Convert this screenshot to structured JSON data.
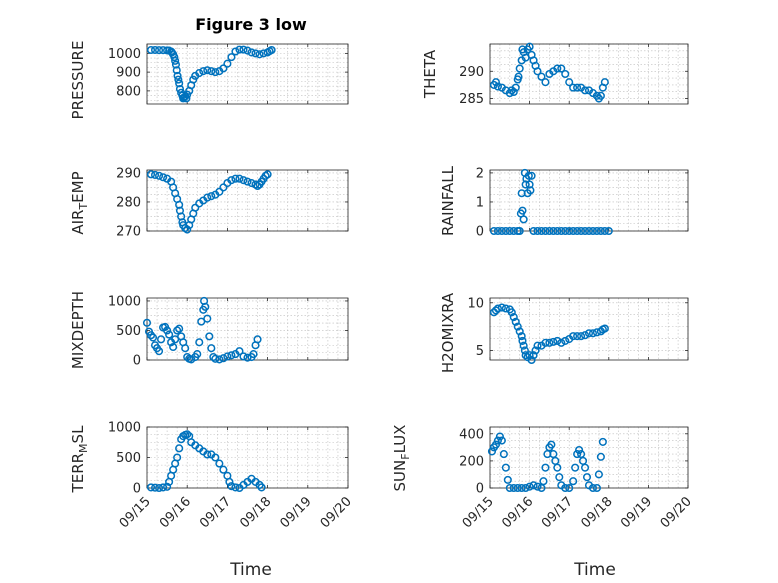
{
  "figure": {
    "title": "Figure 3 low",
    "marker_color": "#0072bd",
    "grid": true,
    "x_tick_labels": [
      "09/15",
      "09/16",
      "09/17",
      "09/18",
      "09/19",
      "09/20"
    ],
    "x_label": "Time"
  },
  "chart_data": [
    {
      "type": "scatter",
      "ylabel": "PRESSURE",
      "ylim": [
        730,
        1050
      ],
      "yticks": [
        800,
        900,
        1000
      ],
      "points": [
        [
          0.1,
          1018
        ],
        [
          0.2,
          1018
        ],
        [
          0.3,
          1017
        ],
        [
          0.4,
          1017
        ],
        [
          0.5,
          1016
        ],
        [
          0.55,
          1015
        ],
        [
          0.6,
          1010
        ],
        [
          0.62,
          1005
        ],
        [
          0.65,
          995
        ],
        [
          0.68,
          980
        ],
        [
          0.7,
          960
        ],
        [
          0.72,
          940
        ],
        [
          0.74,
          910
        ],
        [
          0.76,
          880
        ],
        [
          0.78,
          860
        ],
        [
          0.8,
          840
        ],
        [
          0.82,
          810
        ],
        [
          0.85,
          790
        ],
        [
          0.88,
          775
        ],
        [
          0.9,
          760
        ],
        [
          0.92,
          765
        ],
        [
          0.95,
          770
        ],
        [
          0.98,
          760
        ],
        [
          1.0,
          780
        ],
        [
          1.05,
          800
        ],
        [
          1.1,
          830
        ],
        [
          1.15,
          860
        ],
        [
          1.2,
          880
        ],
        [
          1.3,
          895
        ],
        [
          1.4,
          905
        ],
        [
          1.5,
          910
        ],
        [
          1.6,
          905
        ],
        [
          1.7,
          900
        ],
        [
          1.8,
          905
        ],
        [
          1.9,
          920
        ],
        [
          2.0,
          945
        ],
        [
          2.1,
          980
        ],
        [
          2.2,
          1010
        ],
        [
          2.3,
          1020
        ],
        [
          2.4,
          1020
        ],
        [
          2.5,
          1015
        ],
        [
          2.6,
          1005
        ],
        [
          2.7,
          1000
        ],
        [
          2.8,
          995
        ],
        [
          2.9,
          1000
        ],
        [
          3.0,
          1005
        ],
        [
          3.05,
          1012
        ],
        [
          3.1,
          1018
        ]
      ]
    },
    {
      "type": "scatter",
      "ylabel": "THETA",
      "ylim": [
        284,
        295
      ],
      "yticks": [
        285,
        290
      ],
      "points": [
        [
          0.1,
          287.5
        ],
        [
          0.15,
          288
        ],
        [
          0.2,
          287.2
        ],
        [
          0.3,
          287
        ],
        [
          0.4,
          286.5
        ],
        [
          0.5,
          286
        ],
        [
          0.55,
          286.5
        ],
        [
          0.6,
          286.2
        ],
        [
          0.65,
          287
        ],
        [
          0.7,
          288.5
        ],
        [
          0.72,
          289
        ],
        [
          0.75,
          290.5
        ],
        [
          0.8,
          292
        ],
        [
          0.82,
          294
        ],
        [
          0.85,
          293.5
        ],
        [
          0.9,
          292.5
        ],
        [
          0.95,
          294
        ],
        [
          1.0,
          294.5
        ],
        [
          1.05,
          293
        ],
        [
          1.1,
          292
        ],
        [
          1.15,
          291
        ],
        [
          1.2,
          290
        ],
        [
          1.3,
          289
        ],
        [
          1.4,
          288
        ],
        [
          1.5,
          289.5
        ],
        [
          1.6,
          290
        ],
        [
          1.7,
          290.5
        ],
        [
          1.8,
          290.5
        ],
        [
          1.9,
          289.5
        ],
        [
          2.0,
          288
        ],
        [
          2.1,
          287
        ],
        [
          2.2,
          287
        ],
        [
          2.3,
          287
        ],
        [
          2.4,
          286.5
        ],
        [
          2.5,
          286.5
        ],
        [
          2.6,
          286
        ],
        [
          2.7,
          285.5
        ],
        [
          2.75,
          285
        ],
        [
          2.8,
          285.5
        ],
        [
          2.85,
          287
        ],
        [
          2.9,
          288
        ]
      ]
    },
    {
      "type": "scatter",
      "ylabel": "AIR_TEMP",
      "ylim": [
        270,
        291
      ],
      "yticks": [
        270,
        280,
        290
      ],
      "points": [
        [
          0.1,
          289.5
        ],
        [
          0.2,
          289.3
        ],
        [
          0.3,
          289
        ],
        [
          0.4,
          288.5
        ],
        [
          0.5,
          288
        ],
        [
          0.6,
          287
        ],
        [
          0.65,
          285
        ],
        [
          0.7,
          283
        ],
        [
          0.75,
          281
        ],
        [
          0.8,
          279
        ],
        [
          0.82,
          277
        ],
        [
          0.85,
          275
        ],
        [
          0.88,
          273
        ],
        [
          0.9,
          272
        ],
        [
          0.95,
          271
        ],
        [
          1.0,
          270.5
        ],
        [
          1.05,
          272
        ],
        [
          1.1,
          274
        ],
        [
          1.15,
          276
        ],
        [
          1.2,
          278
        ],
        [
          1.3,
          279.5
        ],
        [
          1.4,
          280.5
        ],
        [
          1.5,
          281.5
        ],
        [
          1.6,
          282
        ],
        [
          1.7,
          282.5
        ],
        [
          1.8,
          283.5
        ],
        [
          1.9,
          285
        ],
        [
          2.0,
          286.5
        ],
        [
          2.1,
          287.5
        ],
        [
          2.2,
          288
        ],
        [
          2.3,
          288
        ],
        [
          2.4,
          287.5
        ],
        [
          2.5,
          287
        ],
        [
          2.6,
          286.5
        ],
        [
          2.7,
          286
        ],
        [
          2.75,
          285.5
        ],
        [
          2.8,
          286
        ],
        [
          2.85,
          287
        ],
        [
          2.9,
          288
        ],
        [
          2.95,
          289
        ],
        [
          3.0,
          289.5
        ]
      ]
    },
    {
      "type": "scatter",
      "ylabel": "RAINFALL",
      "ylim": [
        0,
        2.1
      ],
      "yticks": [
        0,
        1,
        2
      ],
      "points": [
        [
          0.1,
          0
        ],
        [
          0.2,
          0
        ],
        [
          0.3,
          0
        ],
        [
          0.4,
          0
        ],
        [
          0.5,
          0
        ],
        [
          0.6,
          0
        ],
        [
          0.7,
          0
        ],
        [
          0.75,
          0
        ],
        [
          0.78,
          0.6
        ],
        [
          0.8,
          1.3
        ],
        [
          0.82,
          0.7
        ],
        [
          0.85,
          0.4
        ],
        [
          0.88,
          2.0
        ],
        [
          0.9,
          1.6
        ],
        [
          0.92,
          1.8
        ],
        [
          0.95,
          1.3
        ],
        [
          0.98,
          1.9
        ],
        [
          1.0,
          1.6
        ],
        [
          1.02,
          1.4
        ],
        [
          1.05,
          1.9
        ],
        [
          1.1,
          0
        ],
        [
          1.2,
          0
        ],
        [
          1.3,
          0
        ],
        [
          1.4,
          0
        ],
        [
          1.5,
          0
        ],
        [
          1.6,
          0
        ],
        [
          1.7,
          0
        ],
        [
          1.8,
          0
        ],
        [
          1.9,
          0
        ],
        [
          2.0,
          0
        ],
        [
          2.1,
          0
        ],
        [
          2.2,
          0
        ],
        [
          2.3,
          0
        ],
        [
          2.4,
          0
        ],
        [
          2.5,
          0
        ],
        [
          2.6,
          0
        ],
        [
          2.7,
          0
        ],
        [
          2.8,
          0
        ],
        [
          2.9,
          0
        ],
        [
          3.0,
          0
        ]
      ]
    },
    {
      "type": "scatter",
      "ylabel": "MIXDEPTH",
      "ylim": [
        0,
        1050
      ],
      "yticks": [
        0,
        500,
        1000
      ],
      "points": [
        [
          0.0,
          630
        ],
        [
          0.05,
          480
        ],
        [
          0.1,
          420
        ],
        [
          0.15,
          380
        ],
        [
          0.2,
          250
        ],
        [
          0.25,
          200
        ],
        [
          0.3,
          150
        ],
        [
          0.35,
          350
        ],
        [
          0.4,
          550
        ],
        [
          0.45,
          560
        ],
        [
          0.5,
          500
        ],
        [
          0.55,
          430
        ],
        [
          0.6,
          300
        ],
        [
          0.65,
          220
        ],
        [
          0.7,
          350
        ],
        [
          0.75,
          500
        ],
        [
          0.8,
          530
        ],
        [
          0.85,
          400
        ],
        [
          0.9,
          300
        ],
        [
          0.95,
          200
        ],
        [
          1.0,
          50
        ],
        [
          1.05,
          20
        ],
        [
          1.1,
          10
        ],
        [
          1.2,
          50
        ],
        [
          1.25,
          100
        ],
        [
          1.3,
          300
        ],
        [
          1.35,
          650
        ],
        [
          1.4,
          850
        ],
        [
          1.42,
          1000
        ],
        [
          1.45,
          900
        ],
        [
          1.5,
          700
        ],
        [
          1.55,
          400
        ],
        [
          1.6,
          200
        ],
        [
          1.65,
          50
        ],
        [
          1.7,
          20
        ],
        [
          1.8,
          10
        ],
        [
          1.9,
          30
        ],
        [
          2.0,
          60
        ],
        [
          2.1,
          80
        ],
        [
          2.2,
          100
        ],
        [
          2.3,
          150
        ],
        [
          2.4,
          60
        ],
        [
          2.5,
          40
        ],
        [
          2.6,
          50
        ],
        [
          2.65,
          100
        ],
        [
          2.7,
          250
        ],
        [
          2.75,
          350
        ]
      ]
    },
    {
      "type": "scatter",
      "ylabel": "H2OMIXRA",
      "ylim": [
        4,
        10.5
      ],
      "yticks": [
        5,
        10
      ],
      "points": [
        [
          0.1,
          9.0
        ],
        [
          0.15,
          9.2
        ],
        [
          0.2,
          9.4
        ],
        [
          0.3,
          9.5
        ],
        [
          0.4,
          9.4
        ],
        [
          0.5,
          9.3
        ],
        [
          0.55,
          9.0
        ],
        [
          0.6,
          8.5
        ],
        [
          0.65,
          8.0
        ],
        [
          0.7,
          7.5
        ],
        [
          0.75,
          7.0
        ],
        [
          0.8,
          6.5
        ],
        [
          0.82,
          6.0
        ],
        [
          0.85,
          5.5
        ],
        [
          0.88,
          5.0
        ],
        [
          0.9,
          4.5
        ],
        [
          0.95,
          4.3
        ],
        [
          1.0,
          4.5
        ],
        [
          1.05,
          4.0
        ],
        [
          1.1,
          4.5
        ],
        [
          1.15,
          5.0
        ],
        [
          1.2,
          5.5
        ],
        [
          1.3,
          5.5
        ],
        [
          1.4,
          5.8
        ],
        [
          1.5,
          5.8
        ],
        [
          1.6,
          5.9
        ],
        [
          1.7,
          6.0
        ],
        [
          1.8,
          5.8
        ],
        [
          1.9,
          6.0
        ],
        [
          2.0,
          6.2
        ],
        [
          2.1,
          6.5
        ],
        [
          2.2,
          6.5
        ],
        [
          2.3,
          6.5
        ],
        [
          2.4,
          6.6
        ],
        [
          2.5,
          6.8
        ],
        [
          2.6,
          6.8
        ],
        [
          2.7,
          6.9
        ],
        [
          2.8,
          7.0
        ],
        [
          2.85,
          7.2
        ],
        [
          2.9,
          7.3
        ]
      ]
    },
    {
      "type": "scatter",
      "ylabel": "TERR_MSL",
      "ylim": [
        0,
        1000
      ],
      "yticks": [
        0,
        500,
        1000
      ],
      "points": [
        [
          0.1,
          10
        ],
        [
          0.2,
          5
        ],
        [
          0.3,
          0
        ],
        [
          0.4,
          10
        ],
        [
          0.5,
          20
        ],
        [
          0.55,
          100
        ],
        [
          0.6,
          200
        ],
        [
          0.65,
          300
        ],
        [
          0.7,
          400
        ],
        [
          0.75,
          500
        ],
        [
          0.8,
          650
        ],
        [
          0.85,
          800
        ],
        [
          0.9,
          850
        ],
        [
          0.95,
          870
        ],
        [
          1.0,
          880
        ],
        [
          1.05,
          850
        ],
        [
          1.1,
          750
        ],
        [
          1.2,
          700
        ],
        [
          1.3,
          650
        ],
        [
          1.4,
          600
        ],
        [
          1.5,
          550
        ],
        [
          1.6,
          550
        ],
        [
          1.7,
          500
        ],
        [
          1.8,
          400
        ],
        [
          1.9,
          300
        ],
        [
          2.0,
          200
        ],
        [
          2.05,
          100
        ],
        [
          2.1,
          30
        ],
        [
          2.2,
          10
        ],
        [
          2.3,
          0
        ],
        [
          2.4,
          50
        ],
        [
          2.5,
          100
        ],
        [
          2.6,
          150
        ],
        [
          2.7,
          100
        ],
        [
          2.8,
          50
        ],
        [
          2.85,
          10
        ]
      ]
    },
    {
      "type": "scatter",
      "ylabel": "SUN_FLUX",
      "ylim": [
        0,
        450
      ],
      "yticks": [
        0,
        200,
        400
      ],
      "points": [
        [
          0.05,
          270
        ],
        [
          0.1,
          300
        ],
        [
          0.15,
          320
        ],
        [
          0.2,
          350
        ],
        [
          0.25,
          380
        ],
        [
          0.3,
          350
        ],
        [
          0.35,
          250
        ],
        [
          0.4,
          150
        ],
        [
          0.45,
          60
        ],
        [
          0.5,
          0
        ],
        [
          0.6,
          0
        ],
        [
          0.7,
          0
        ],
        [
          0.8,
          0
        ],
        [
          0.9,
          0
        ],
        [
          1.0,
          10
        ],
        [
          1.1,
          20
        ],
        [
          1.2,
          10
        ],
        [
          1.3,
          0
        ],
        [
          1.35,
          50
        ],
        [
          1.4,
          150
        ],
        [
          1.45,
          250
        ],
        [
          1.5,
          300
        ],
        [
          1.55,
          320
        ],
        [
          1.6,
          250
        ],
        [
          1.65,
          200
        ],
        [
          1.7,
          150
        ],
        [
          1.75,
          80
        ],
        [
          1.8,
          20
        ],
        [
          1.9,
          0
        ],
        [
          2.0,
          0
        ],
        [
          2.1,
          50
        ],
        [
          2.15,
          150
        ],
        [
          2.2,
          250
        ],
        [
          2.25,
          280
        ],
        [
          2.3,
          250
        ],
        [
          2.35,
          200
        ],
        [
          2.4,
          150
        ],
        [
          2.45,
          80
        ],
        [
          2.5,
          20
        ],
        [
          2.6,
          0
        ],
        [
          2.7,
          0
        ],
        [
          2.75,
          100
        ],
        [
          2.8,
          230
        ],
        [
          2.85,
          340
        ]
      ]
    }
  ]
}
